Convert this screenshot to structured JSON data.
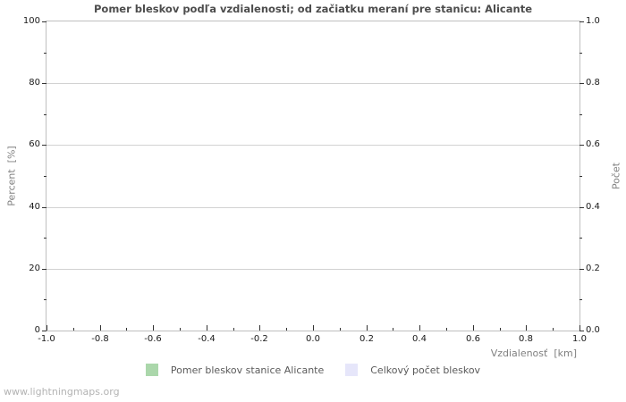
{
  "title": "Pomer bleskov podľa vzdialenosti; od začiatku meraní pre stanicu: Alicante",
  "watermark": "www.lightningmaps.org",
  "axes": {
    "left": {
      "label": "Percent  [%]",
      "ticks": [
        "0",
        "20",
        "40",
        "60",
        "80",
        "100"
      ]
    },
    "right": {
      "label": "Počet",
      "ticks": [
        "0.0",
        "0.2",
        "0.4",
        "0.6",
        "0.8",
        "1.0"
      ]
    },
    "x": {
      "label": "Vzdialenosť  [km]",
      "ticks": [
        "-1.0",
        "-0.8",
        "-0.6",
        "-0.4",
        "-0.2",
        "0.0",
        "0.2",
        "0.4",
        "0.6",
        "0.8",
        "1.0"
      ]
    }
  },
  "legend": [
    {
      "label": "Pomer bleskov stanice Alicante",
      "color": "#abd7ab"
    },
    {
      "label": "Celkový počet bleskov",
      "color": "#e6e6fa"
    }
  ],
  "chart_data": {
    "type": "line",
    "title": "Pomer bleskov podľa vzdialenosti; od začiatku meraní pre stanicu: Alicante",
    "xlabel": "Vzdialenosť [km]",
    "ylabel_left": "Percent [%]",
    "ylabel_right": "Počet",
    "xlim": [
      -1.0,
      1.0
    ],
    "x_ticks": [
      -1.0,
      -0.8,
      -0.6,
      -0.4,
      -0.2,
      0.0,
      0.2,
      0.4,
      0.6,
      0.8,
      1.0
    ],
    "ylim_left": [
      0,
      100
    ],
    "left_ticks": [
      0,
      20,
      40,
      60,
      80,
      100
    ],
    "ylim_right": [
      0.0,
      1.0
    ],
    "right_ticks": [
      0.0,
      0.2,
      0.4,
      0.6,
      0.8,
      1.0
    ],
    "grid": "horizontal-major-only",
    "legend_position": "bottom-center",
    "series": [
      {
        "name": "Pomer bleskov stanice Alicante",
        "color": "#abd7ab",
        "x": [],
        "y": []
      },
      {
        "name": "Celkový počet bleskov",
        "color": "#e6e6fa",
        "x": [],
        "y": []
      }
    ]
  }
}
